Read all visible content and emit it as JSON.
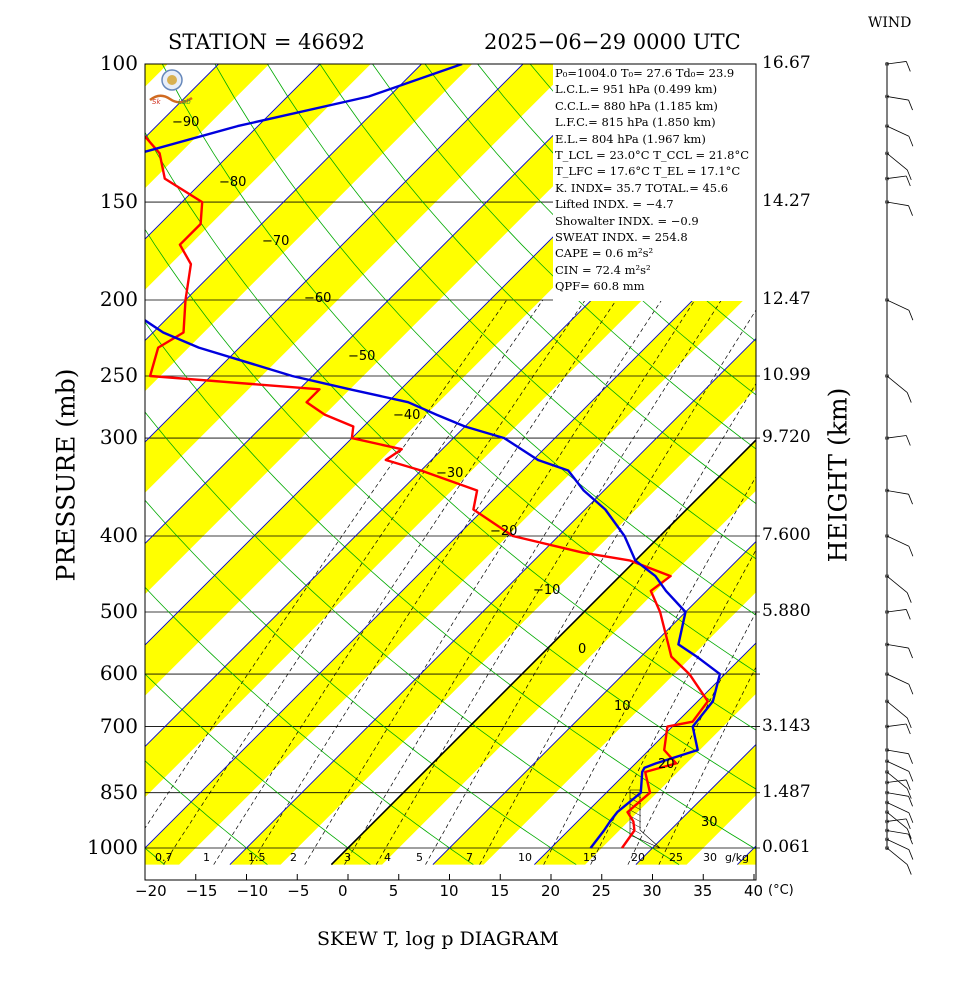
{
  "header": {
    "station": "STATION = 46692",
    "datetime": "2025−06−29 0000 UTC"
  },
  "axes": {
    "ylabel": "PRESSURE (mb)",
    "hlabel": "HEIGHT (km)",
    "footer": "SKEW T, log p DIAGRAM",
    "wind_title": "WIND",
    "temp_unit": "(°C)",
    "pressure_ticks": [
      "100",
      "150",
      "200",
      "250",
      "300",
      "400",
      "500",
      "600",
      "700",
      "850",
      "1000"
    ],
    "height_ticks": [
      "16.67",
      "14.27",
      "12.47",
      "10.99",
      "9.720",
      "7.600",
      "5.880",
      "3.143",
      "1.487",
      "0.061"
    ],
    "temp_ticks": [
      "−20",
      "−15",
      "−10",
      "−5",
      "0",
      "5",
      "10",
      "15",
      "20",
      "25",
      "30",
      "35",
      "40"
    ]
  },
  "isotherm_labels": [
    "−90",
    "−80",
    "−70",
    "−60",
    "−50",
    "−40",
    "−30",
    "−20",
    "−10",
    "0",
    "10",
    "20",
    "30"
  ],
  "mixing_ratio_labels": [
    "0.7",
    "1",
    "1.5",
    "2",
    "3",
    "4",
    "5",
    "7",
    "10",
    "15",
    "20",
    "25",
    "30",
    "g/kg"
  ],
  "indices": [
    "P₀=1004.0  T₀= 27.6  Td₀= 23.9",
    "L.C.L.= 951 hPa (0.499 km)",
    "C.C.L.= 880 hPa (1.185 km)",
    "L.F.C.= 815 hPa (1.850 km)",
    "E.L.= 804 hPa (1.967 km)",
    "T_LCL = 23.0°C  T_CCL = 21.8°C",
    "T_LFC = 17.6°C  T_EL = 17.1°C",
    "K. INDX= 35.7  TOTAL.= 45.6",
    "Lifted INDX. =  −4.7",
    "Showalter INDX. =  −0.9",
    "SWEAT INDX. =  254.8",
    "CAPE =  0.6 m²s²",
    "CIN  =  72.4 m²s²",
    "QPF= 60.8 mm"
  ],
  "colors": {
    "temperature": "#ff0000",
    "dewpoint": "#0000dd",
    "band": "#ffff00",
    "isotherm": "#0000cc",
    "dry_adiabat": "#00aa00"
  },
  "chart_data": {
    "type": "line",
    "title": "SKEW T, log p DIAGRAM",
    "xlabel": "(°C)",
    "ylabel": "PRESSURE (mb)",
    "xlim": [
      -20,
      40
    ],
    "ylim": [
      1050,
      100
    ],
    "y_scale": "log",
    "series": [
      {
        "name": "Temperature",
        "pressure": [
          1000,
          950,
          925,
          900,
          850,
          800,
          780,
          750,
          700,
          690,
          650,
          600,
          570,
          550,
          500,
          470,
          450,
          430,
          420,
          400,
          370,
          350,
          330,
          320,
          310,
          300,
          290,
          280,
          270,
          260,
          250,
          230,
          220,
          200,
          180,
          170,
          160,
          150,
          140,
          130,
          120,
          110,
          100
        ],
        "temp": [
          27.0,
          26.5,
          25.5,
          24.0,
          24.3,
          21.8,
          24.0,
          21.5,
          19.5,
          21.5,
          21.0,
          16.5,
          13.0,
          11.5,
          7.5,
          4.5,
          5.0,
          -0.5,
          -6.0,
          -14.5,
          -21.0,
          -22.5,
          -30.0,
          -34.5,
          -34.0,
          -40.0,
          -41.0,
          -45.0,
          -48.0,
          -48.0,
          -66.0,
          -68.0,
          -67.0,
          -70.0,
          -73.0,
          -76.0,
          -76.0,
          -78.0,
          -84.0,
          -87.0,
          -92.0,
          -95.0,
          -100.0
        ]
      },
      {
        "name": "Dewpoint",
        "pressure": [
          1000,
          950,
          925,
          900,
          850,
          800,
          790,
          780,
          750,
          700,
          650,
          600,
          570,
          550,
          500,
          470,
          450,
          430,
          400,
          370,
          350,
          330,
          320,
          300,
          290,
          280,
          270,
          260,
          250,
          230,
          220,
          200,
          180,
          170,
          160,
          150,
          140,
          130,
          120,
          110,
          100
        ],
        "temp": [
          23.9,
          23.5,
          23.2,
          23.0,
          23.4,
          21.5,
          21.3,
          22.0,
          24.8,
          22.0,
          21.5,
          19.5,
          15.5,
          12.5,
          10.0,
          6.0,
          3.5,
          0.0,
          -3.5,
          -8.0,
          -12.0,
          -15.5,
          -19.5,
          -25.0,
          -30.0,
          -34.0,
          -38.0,
          -45.0,
          -52.0,
          -64.0,
          -69.0,
          -77.0,
          -84.0,
          -88.0,
          -92.0,
          -94.5,
          -93.0,
          -89.0,
          -82.0,
          -72.0,
          -66.0
        ]
      }
    ],
    "wind": {
      "type": "barbs",
      "pressure": [
        1000,
        975,
        950,
        925,
        900,
        875,
        850,
        825,
        800,
        775,
        750,
        700,
        650,
        600,
        550,
        500,
        450,
        400,
        350,
        300,
        250,
        200,
        150,
        140,
        130,
        120,
        110,
        100
      ]
    }
  }
}
